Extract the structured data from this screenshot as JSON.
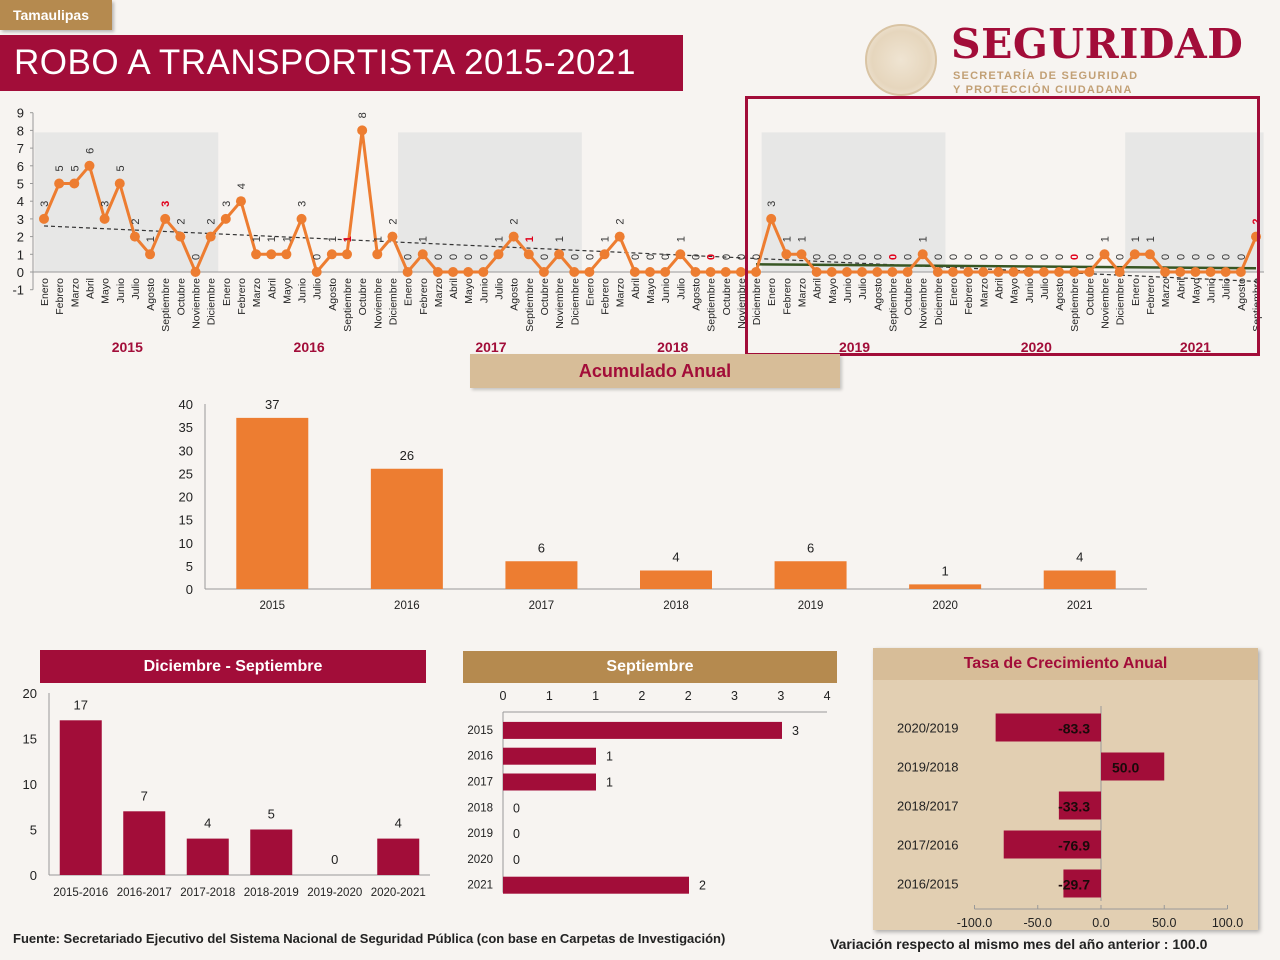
{
  "header": {
    "state": "Tamaulipas",
    "title": "ROBO A TRANSPORTISTA 2015-2021"
  },
  "logo": {
    "brand": "SEGURIDAD",
    "subtitle_line1": "SECRETARÍA DE SEGURIDAD",
    "subtitle_line2": "Y PROTECCIÓN CIUDADANA",
    "emblem_icon": "mexican-coat-of-arms-icon"
  },
  "colors": {
    "primary": "#a20d39",
    "gold": "#b58a4f",
    "sand": "#d7bd98",
    "orange": "#ed7d31",
    "trend_dark": "#333333",
    "trend_green": "#375623",
    "highlight_label": "#e0001b"
  },
  "footer": {
    "source": "Fuente: Secretariado Ejecutivo del Sistema Nacional de Seguridad Pública (con base en Carpetas de Investigación)",
    "note": "Variación respecto al mismo mes del año anterior : 100.0"
  },
  "sections": {
    "acumulado": "Acumulado Anual",
    "dic_sep": "Diciembre - Septiembre",
    "septiembre": "Septiembre",
    "tasa": "Tasa de Crecimiento Anual"
  },
  "chart_data": [
    {
      "id": "monthly",
      "type": "line",
      "title": "",
      "ylim": [
        -1,
        9
      ],
      "yticks": [
        -1,
        0,
        1,
        2,
        3,
        4,
        5,
        6,
        7,
        8,
        9
      ],
      "years": [
        "2015",
        "2016",
        "2017",
        "2018",
        "2019",
        "2020",
        "2021"
      ],
      "months": [
        "Enero",
        "Febrero",
        "Marzo",
        "Abril",
        "Mayo",
        "Junio",
        "Julio",
        "Agosto",
        "Septiembre",
        "Octubre",
        "Noviembre",
        "Diciembre"
      ],
      "values": {
        "2015": [
          3,
          5,
          5,
          6,
          3,
          5,
          2,
          1,
          3,
          2,
          0,
          2
        ],
        "2016": [
          3,
          4,
          1,
          1,
          1,
          3,
          0,
          1,
          1,
          8,
          1,
          2
        ],
        "2017": [
          0,
          1,
          0,
          0,
          0,
          0,
          1,
          2,
          1,
          0,
          1,
          0
        ],
        "2018": [
          0,
          1,
          2,
          0,
          0,
          0,
          1,
          0,
          0,
          0,
          0,
          0
        ],
        "2019": [
          3,
          1,
          1,
          0,
          0,
          0,
          0,
          0,
          0,
          0,
          1,
          0
        ],
        "2020": [
          0,
          0,
          0,
          0,
          0,
          0,
          0,
          0,
          0,
          0,
          1,
          0
        ],
        "2021": [
          1,
          1,
          0,
          0,
          0,
          0,
          0,
          0,
          2
        ]
      },
      "highlight_month": "Septiembre",
      "trendlines": [
        "linear trend (dashed, full series)",
        "linear trend (solid green, Dic 2018 - Sep 2021)"
      ],
      "shaded_years": [
        "2015",
        "2017",
        "2019",
        "2021"
      ],
      "highlight_box_years": [
        "2019",
        "2020",
        "2021"
      ]
    },
    {
      "id": "acumulado",
      "type": "bar",
      "title": "Acumulado Anual",
      "categories": [
        "2015",
        "2016",
        "2017",
        "2018",
        "2019",
        "2020",
        "2021"
      ],
      "values": [
        37,
        26,
        6,
        4,
        6,
        1,
        4
      ],
      "ylim": [
        0,
        40
      ],
      "yticks": [
        0,
        5,
        10,
        15,
        20,
        25,
        30,
        35,
        40
      ]
    },
    {
      "id": "dic_sep",
      "type": "bar",
      "title": "Diciembre - Septiembre",
      "categories": [
        "2015-2016",
        "2016-2017",
        "2017-2018",
        "2018-2019",
        "2019-2020",
        "2020-2021"
      ],
      "values": [
        17,
        7,
        4,
        5,
        0,
        4
      ],
      "ylim": [
        0,
        20
      ],
      "yticks": [
        0,
        5,
        10,
        15,
        20
      ]
    },
    {
      "id": "septiembre",
      "type": "bar",
      "orientation": "horizontal",
      "title": "Septiembre",
      "categories": [
        "2015",
        "2016",
        "2017",
        "2018",
        "2019",
        "2020",
        "2021"
      ],
      "values": [
        3,
        1,
        1,
        0,
        0,
        0,
        2
      ],
      "xlim": [
        0,
        3.5
      ],
      "xtick_labels": [
        "0",
        "1",
        "1",
        "2",
        "2",
        "3",
        "3",
        "4"
      ]
    },
    {
      "id": "tasa",
      "type": "bar",
      "orientation": "horizontal",
      "title": "Tasa de Crecimiento Anual",
      "categories": [
        "2020/2019",
        "2019/2018",
        "2018/2017",
        "2017/2016",
        "2016/2015"
      ],
      "values": [
        -83.3,
        50.0,
        -33.3,
        -76.9,
        -29.7
      ],
      "labels": [
        "-83.3",
        "50.0",
        "-33.3",
        "-76.9",
        "-29.7"
      ],
      "xlim": [
        -100,
        100
      ],
      "xtick_labels": [
        "-100.0",
        "-50.0",
        "0.0",
        "50.0",
        "100.0"
      ]
    }
  ]
}
